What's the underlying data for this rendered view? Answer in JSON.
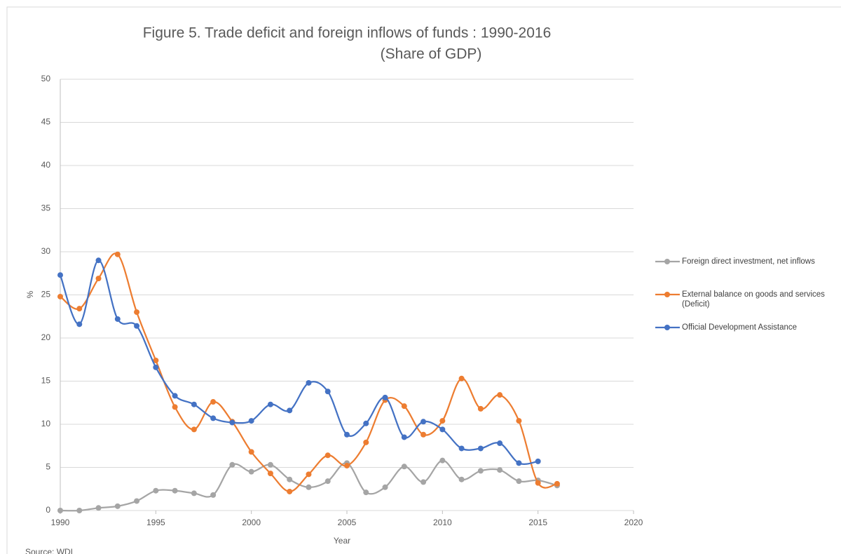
{
  "chart_data": {
    "type": "line",
    "smooth": true,
    "title": "Figure 5. Trade deficit and foreign inflows of funds : 1990-2016",
    "subtitle": "(Share of GDP)",
    "x_label": "Year",
    "y_label": "%",
    "source": "Source: WDI",
    "x": [
      1990,
      1991,
      1992,
      1993,
      1994,
      1995,
      1996,
      1997,
      1998,
      1999,
      2000,
      2001,
      2002,
      2003,
      2004,
      2005,
      2006,
      2007,
      2008,
      2009,
      2010,
      2011,
      2012,
      2013,
      2014,
      2015,
      2016
    ],
    "series": [
      {
        "name": "Foreign direct investment, net inflows",
        "color": "#a5a5a5",
        "values": [
          0,
          0,
          0.3,
          0.5,
          1.1,
          2.3,
          2.3,
          2.0,
          1.8,
          5.3,
          4.5,
          5.3,
          3.6,
          2.7,
          3.4,
          5.5,
          2.1,
          2.7,
          5.1,
          3.3,
          5.8,
          3.6,
          4.6,
          4.7,
          3.4,
          3.5,
          2.9
        ]
      },
      {
        "name": "External balance on goods and services (Deficit)",
        "color": "#ed7d31",
        "values": [
          24.8,
          23.4,
          26.9,
          29.7,
          23.0,
          17.4,
          12.0,
          9.4,
          12.6,
          10.3,
          6.8,
          4.3,
          2.2,
          4.2,
          6.4,
          5.2,
          7.9,
          12.8,
          12.1,
          8.8,
          10.4,
          15.3,
          11.8,
          13.4,
          10.4,
          3.2,
          3.1
        ]
      },
      {
        "name": "Official Development Assistance",
        "color": "#4472c4",
        "values": [
          27.3,
          21.6,
          29.0,
          22.2,
          21.4,
          16.6,
          13.3,
          12.3,
          10.7,
          10.2,
          10.4,
          12.3,
          11.6,
          14.8,
          13.8,
          8.8,
          10.1,
          13.1,
          8.5,
          10.3,
          9.4,
          7.2,
          7.2,
          7.8,
          5.5,
          5.7,
          null
        ]
      }
    ],
    "xlim": [
      1990,
      2020
    ],
    "xticks": [
      1990,
      1995,
      2000,
      2005,
      2010,
      2015,
      2020
    ],
    "ylim": [
      0,
      50
    ],
    "yticks": [
      0,
      5,
      10,
      15,
      20,
      25,
      30,
      35,
      40,
      45,
      50
    ],
    "grid": true,
    "legend": "right"
  }
}
